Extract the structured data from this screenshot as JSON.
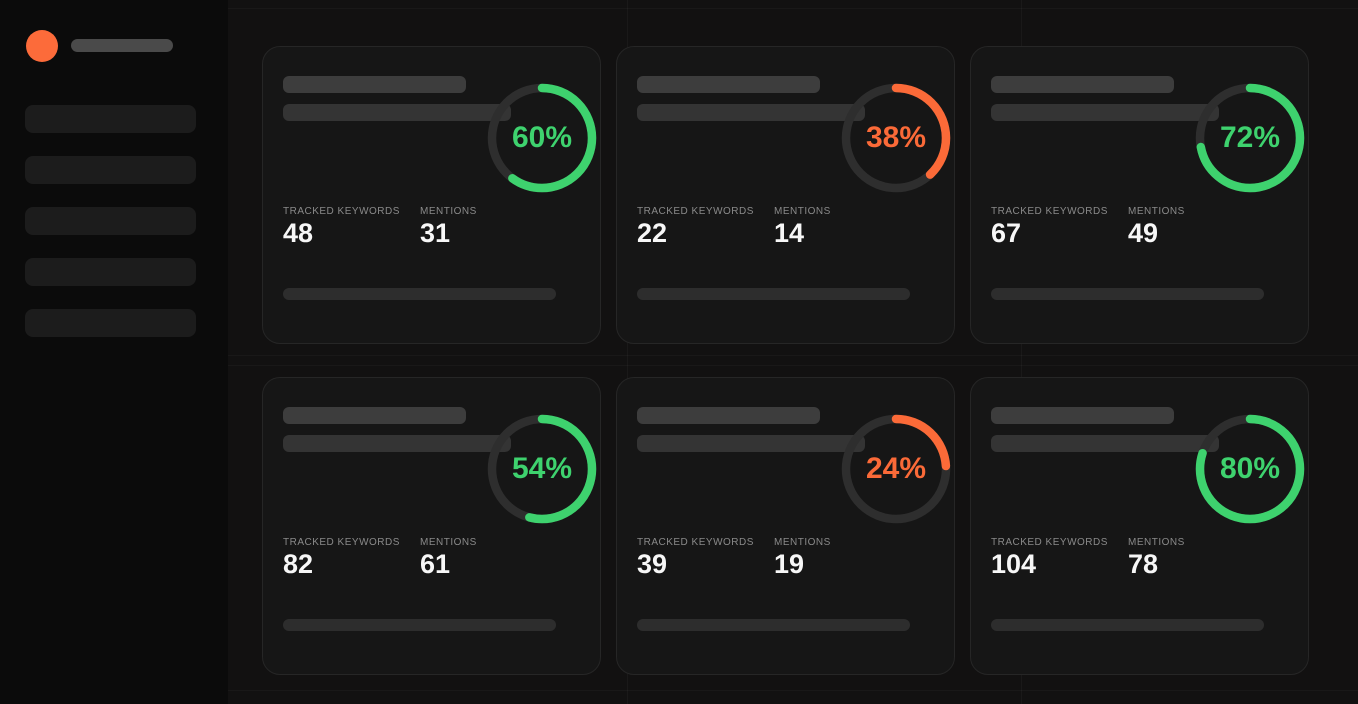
{
  "colors": {
    "green": "#3ed26e",
    "orange": "#fb6a38",
    "avatar": "#fc6b3a",
    "ring_track": "#2e2e2e"
  },
  "labels": {
    "tracked_keywords": "TRACKED KEYWORDS",
    "mentions": "MENTIONS"
  },
  "cards": [
    {
      "percent_label": "60%",
      "percent": 60,
      "color": "green",
      "tracked_keywords": "48",
      "mentions": "31"
    },
    {
      "percent_label": "38%",
      "percent": 38,
      "color": "orange",
      "tracked_keywords": "22",
      "mentions": "14"
    },
    {
      "percent_label": "72%",
      "percent": 72,
      "color": "green",
      "tracked_keywords": "67",
      "mentions": "49"
    },
    {
      "percent_label": "54%",
      "percent": 54,
      "color": "green",
      "tracked_keywords": "82",
      "mentions": "61"
    },
    {
      "percent_label": "24%",
      "percent": 24,
      "color": "orange",
      "tracked_keywords": "39",
      "mentions": "19"
    },
    {
      "percent_label": "80%",
      "percent": 80,
      "color": "green",
      "tracked_keywords": "104",
      "mentions": "78"
    }
  ]
}
